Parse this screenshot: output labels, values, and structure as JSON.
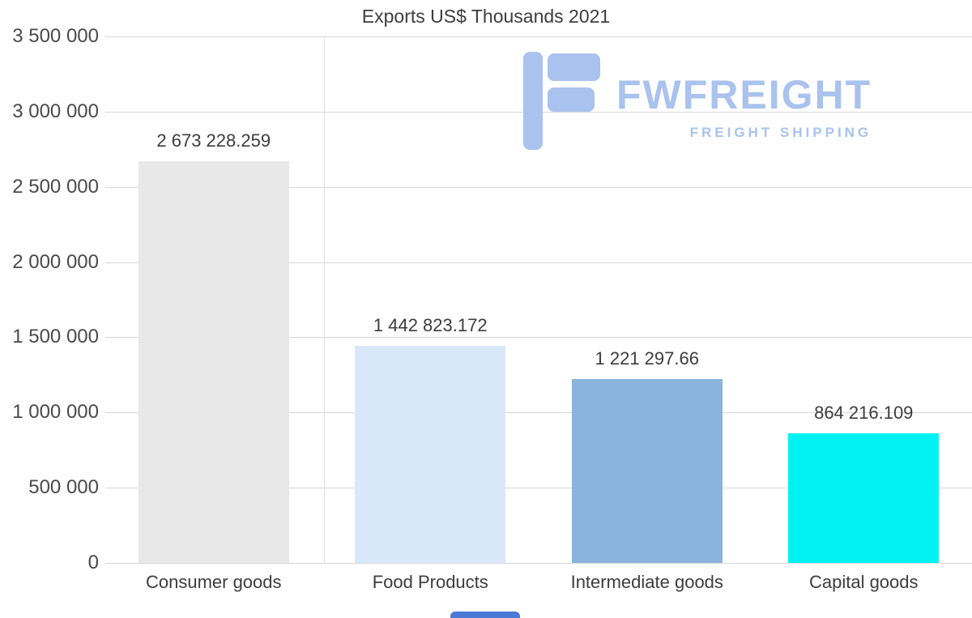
{
  "chart_data": {
    "type": "bar",
    "title": "Exports US$ Thousands 2021",
    "categories": [
      "Consumer goods",
      "Food Products",
      "Intermediate goods",
      "Capital goods"
    ],
    "values": [
      2673228.259,
      1442823.172,
      1221297.66,
      864216.109
    ],
    "value_labels": [
      "2 673 228.259",
      "1 442 823.172",
      "1 221 297.66",
      "864 216.109"
    ],
    "bar_colors": [
      "#e8e8e8",
      "#d9e8f9",
      "#8ab4dc",
      "#00f2f2"
    ],
    "xlabel": "",
    "ylabel": "",
    "ylim": [
      0,
      3500000
    ],
    "y_ticks": [
      0,
      500000,
      1000000,
      1500000,
      2000000,
      2500000,
      3000000,
      3500000
    ],
    "y_tick_labels": [
      "0",
      "500 000",
      "1 000 000",
      "1 500 000",
      "2 000 000",
      "2 500 000",
      "3 000 000",
      "3 500 000"
    ],
    "grid": "horizontal",
    "gridline_color": "#d9d9d9",
    "legend": "none"
  },
  "watermark": {
    "name": "FWFREIGHT",
    "subtitle": "FREIGHT SHIPPING",
    "color": "#a9c2ee"
  },
  "accent_bar_color": "#4b79d6"
}
